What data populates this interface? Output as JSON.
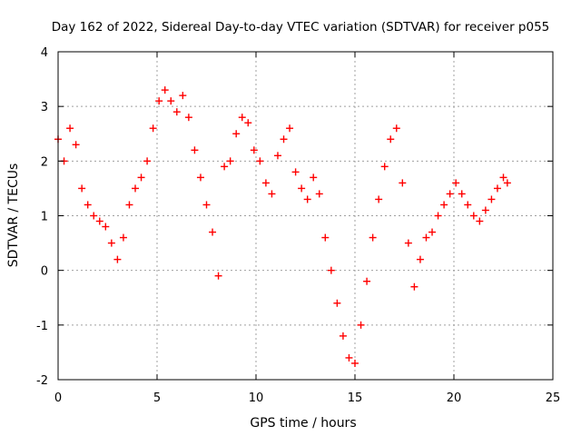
{
  "chart_data": {
    "type": "scatter",
    "title": "Day 162 of 2022, Sidereal Day-to-day VTEC variation (SDTVAR) for receiver p055",
    "xlabel": "GPS time / hours",
    "ylabel": "SDTVAR / TECUs",
    "xlim": [
      0,
      25
    ],
    "ylim": [
      -2,
      4
    ],
    "xticks": [
      "0",
      "5",
      "10",
      "15",
      "20",
      "25"
    ],
    "yticks": [
      "-2",
      "-1",
      "0",
      "1",
      "2",
      "3",
      "4"
    ],
    "grid": true,
    "marker": "+",
    "color": "#ff0000",
    "series": [
      {
        "name": "SDTVAR",
        "x": [
          0.0,
          0.3,
          0.6,
          0.9,
          1.2,
          1.5,
          1.8,
          2.1,
          2.4,
          2.7,
          3.0,
          3.3,
          3.6,
          3.9,
          4.2,
          4.5,
          4.8,
          5.1,
          5.4,
          5.7,
          6.0,
          6.3,
          6.6,
          6.9,
          7.2,
          7.5,
          7.8,
          8.1,
          8.4,
          8.7,
          9.0,
          9.3,
          9.6,
          9.9,
          10.2,
          10.5,
          10.8,
          11.1,
          11.4,
          11.7,
          12.0,
          12.3,
          12.6,
          12.9,
          13.2,
          13.5,
          13.8,
          14.1,
          14.4,
          14.7,
          15.0,
          15.3,
          15.6,
          15.9,
          16.2,
          16.5,
          16.8,
          17.1,
          17.4,
          17.7,
          18.0,
          18.3,
          18.6,
          18.9,
          19.2,
          19.5,
          19.8,
          20.1,
          20.4,
          20.7,
          21.0,
          21.3,
          21.6,
          21.9,
          22.2,
          22.5,
          22.7
        ],
        "y": [
          2.4,
          2.0,
          2.6,
          2.3,
          1.5,
          1.2,
          1.0,
          0.9,
          0.8,
          0.5,
          0.2,
          0.6,
          1.2,
          1.5,
          1.7,
          2.0,
          2.6,
          3.1,
          3.3,
          3.1,
          2.9,
          3.2,
          2.8,
          2.2,
          1.7,
          1.2,
          0.7,
          -0.1,
          1.9,
          2.0,
          2.5,
          2.8,
          2.7,
          2.2,
          2.0,
          1.6,
          1.4,
          2.1,
          2.4,
          2.6,
          1.8,
          1.5,
          1.3,
          1.7,
          1.4,
          0.6,
          0.0,
          -0.6,
          -1.2,
          -1.6,
          -1.7,
          -1.0,
          -0.2,
          0.6,
          1.3,
          1.9,
          2.4,
          2.6,
          1.6,
          0.5,
          -0.3,
          0.2,
          0.6,
          0.7,
          1.0,
          1.2,
          1.4,
          1.6,
          1.4,
          1.2,
          1.0,
          0.9,
          1.1,
          1.3,
          1.5,
          1.7,
          1.6
        ]
      }
    ]
  }
}
